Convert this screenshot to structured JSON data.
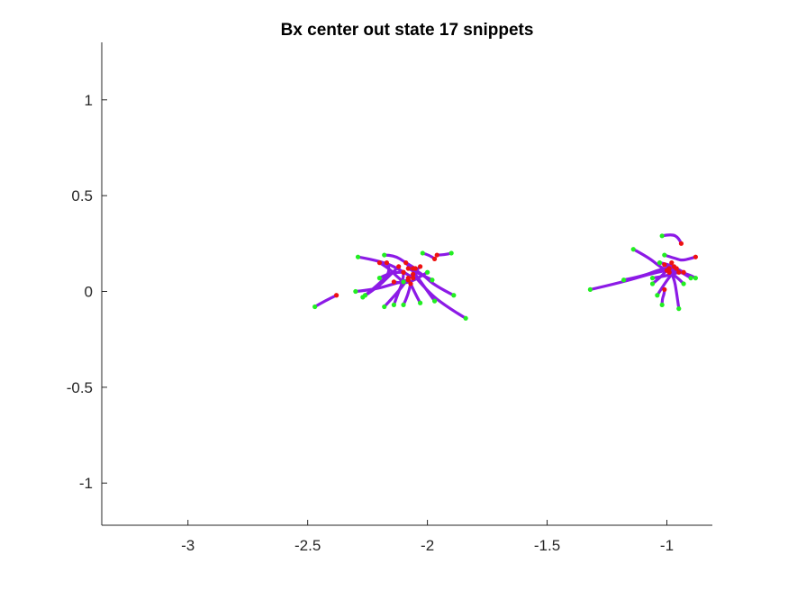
{
  "chart_data": {
    "type": "line",
    "title": "Bx  center out state 17 snippets",
    "xlabel": "",
    "ylabel": "",
    "xlim": [
      -3.36,
      -0.81
    ],
    "ylim": [
      -1.22,
      1.3
    ],
    "xticks": [
      -3,
      -2.5,
      -2,
      -1.5,
      -1
    ],
    "xtick_labels": [
      "-3",
      "-2.5",
      "-2",
      "-1.5",
      "-1"
    ],
    "yticks": [
      -1,
      -0.5,
      0,
      0.5,
      1
    ],
    "ytick_labels": [
      "-1",
      "-0.5",
      "0",
      "0.5",
      "1"
    ],
    "grid": false,
    "box": "left-bottom",
    "colors": {
      "trajectory": "#8c1ae6",
      "start_marker": "#22ee22",
      "end_marker": "#ee1111"
    },
    "series": [
      {
        "points": [
          [
            -2.47,
            -0.08
          ],
          [
            -2.43,
            -0.05
          ],
          [
            -2.38,
            -0.02
          ]
        ]
      },
      {
        "points": [
          [
            -2.29,
            0.18
          ],
          [
            -2.2,
            0.16
          ],
          [
            -2.12,
            0.12
          ],
          [
            -2.06,
            0.07
          ]
        ]
      },
      {
        "points": [
          [
            -2.3,
            0.0
          ],
          [
            -2.22,
            0.01
          ],
          [
            -2.14,
            0.04
          ],
          [
            -2.08,
            0.06
          ]
        ]
      },
      {
        "points": [
          [
            -2.27,
            -0.03
          ],
          [
            -2.21,
            0.02
          ],
          [
            -2.16,
            0.08
          ],
          [
            -2.12,
            0.13
          ]
        ]
      },
      {
        "points": [
          [
            -2.26,
            -0.02
          ],
          [
            -2.2,
            0.04
          ],
          [
            -2.15,
            0.11
          ],
          [
            -2.17,
            0.15
          ]
        ]
      },
      {
        "points": [
          [
            -2.18,
            0.19
          ],
          [
            -2.14,
            0.19
          ],
          [
            -2.09,
            0.15
          ],
          [
            -2.05,
            0.12
          ]
        ]
      },
      {
        "points": [
          [
            -2.18,
            -0.08
          ],
          [
            -2.12,
            0.0
          ],
          [
            -2.08,
            0.07
          ],
          [
            -2.03,
            0.13
          ]
        ]
      },
      {
        "points": [
          [
            -2.14,
            -0.07
          ],
          [
            -2.12,
            0.0
          ],
          [
            -2.1,
            0.06
          ],
          [
            -2.1,
            0.1
          ]
        ]
      },
      {
        "points": [
          [
            -2.02,
            0.2
          ],
          [
            -1.99,
            0.19
          ],
          [
            -1.97,
            0.17
          ]
        ]
      },
      {
        "points": [
          [
            -1.9,
            0.2
          ],
          [
            -1.93,
            0.19
          ],
          [
            -1.96,
            0.19
          ]
        ]
      },
      {
        "points": [
          [
            -1.84,
            -0.14
          ],
          [
            -1.92,
            -0.08
          ],
          [
            -2.0,
            0.0
          ],
          [
            -2.06,
            0.09
          ]
        ]
      },
      {
        "points": [
          [
            -1.89,
            -0.02
          ],
          [
            -1.97,
            0.03
          ],
          [
            -2.02,
            0.09
          ],
          [
            -2.06,
            0.12
          ]
        ]
      },
      {
        "points": [
          [
            -1.97,
            -0.05
          ],
          [
            -2.01,
            0.02
          ],
          [
            -2.05,
            0.09
          ],
          [
            -2.09,
            0.15
          ]
        ]
      },
      {
        "points": [
          [
            -2.03,
            -0.06
          ],
          [
            -2.06,
            0.01
          ],
          [
            -2.08,
            0.07
          ]
        ]
      },
      {
        "points": [
          [
            -2.1,
            0.05
          ],
          [
            -2.13,
            0.08
          ],
          [
            -2.16,
            0.12
          ],
          [
            -2.2,
            0.15
          ]
        ]
      },
      {
        "points": [
          [
            -2.0,
            0.1
          ],
          [
            -2.05,
            0.06
          ],
          [
            -2.1,
            0.04
          ],
          [
            -2.14,
            0.05
          ]
        ]
      },
      {
        "points": [
          [
            -2.2,
            0.07
          ],
          [
            -2.17,
            0.09
          ],
          [
            -2.13,
            0.1
          ],
          [
            -2.1,
            0.1
          ]
        ]
      },
      {
        "points": [
          [
            -2.1,
            -0.07
          ],
          [
            -2.08,
            -0.02
          ],
          [
            -2.07,
            0.04
          ]
        ]
      },
      {
        "points": [
          [
            -1.98,
            0.06
          ],
          [
            -2.03,
            0.09
          ],
          [
            -2.08,
            0.12
          ]
        ]
      },
      {
        "points": [
          [
            -1.32,
            0.01
          ],
          [
            -1.18,
            0.05
          ],
          [
            -1.05,
            0.1
          ],
          [
            -0.96,
            0.12
          ]
        ]
      },
      {
        "points": [
          [
            -1.18,
            0.06
          ],
          [
            -1.1,
            0.08
          ],
          [
            -1.02,
            0.12
          ],
          [
            -0.97,
            0.13
          ]
        ]
      },
      {
        "points": [
          [
            -1.14,
            0.22
          ],
          [
            -1.08,
            0.18
          ],
          [
            -1.03,
            0.13
          ],
          [
            -0.99,
            0.1
          ]
        ]
      },
      {
        "points": [
          [
            -1.02,
            0.29
          ],
          [
            -0.98,
            0.3
          ],
          [
            -0.95,
            0.28
          ],
          [
            -0.94,
            0.25
          ]
        ]
      },
      {
        "points": [
          [
            -0.9,
            0.07
          ],
          [
            -0.94,
            0.1
          ],
          [
            -0.98,
            0.13
          ],
          [
            -1.01,
            0.14
          ]
        ]
      },
      {
        "points": [
          [
            -1.01,
            0.19
          ],
          [
            -0.96,
            0.17
          ],
          [
            -0.93,
            0.16
          ],
          [
            -0.88,
            0.18
          ]
        ]
      },
      {
        "points": [
          [
            -1.06,
            0.07
          ],
          [
            -1.0,
            0.08
          ],
          [
            -0.95,
            0.1
          ]
        ]
      },
      {
        "points": [
          [
            -1.04,
            -0.02
          ],
          [
            -1.01,
            0.04
          ],
          [
            -0.98,
            0.09
          ],
          [
            -0.96,
            0.12
          ]
        ]
      },
      {
        "points": [
          [
            -0.95,
            -0.09
          ],
          [
            -0.96,
            0.0
          ],
          [
            -0.97,
            0.07
          ],
          [
            -0.99,
            0.12
          ]
        ]
      },
      {
        "points": [
          [
            -0.93,
            0.04
          ],
          [
            -0.96,
            0.08
          ],
          [
            -0.99,
            0.1
          ]
        ]
      },
      {
        "points": [
          [
            -0.88,
            0.07
          ],
          [
            -0.91,
            0.09
          ],
          [
            -0.95,
            0.1
          ],
          [
            -1.0,
            0.11
          ]
        ]
      },
      {
        "points": [
          [
            -1.06,
            0.04
          ],
          [
            -1.03,
            0.07
          ],
          [
            -1.0,
            0.11
          ],
          [
            -0.98,
            0.15
          ]
        ]
      },
      {
        "points": [
          [
            -1.03,
            0.15
          ],
          [
            -0.99,
            0.14
          ],
          [
            -0.96,
            0.12
          ],
          [
            -0.93,
            0.1
          ]
        ]
      },
      {
        "points": [
          [
            -1.02,
            -0.07
          ],
          [
            -1.02,
            -0.04
          ],
          [
            -1.01,
            -0.01
          ],
          [
            -1.01,
            0.01
          ]
        ]
      }
    ]
  }
}
